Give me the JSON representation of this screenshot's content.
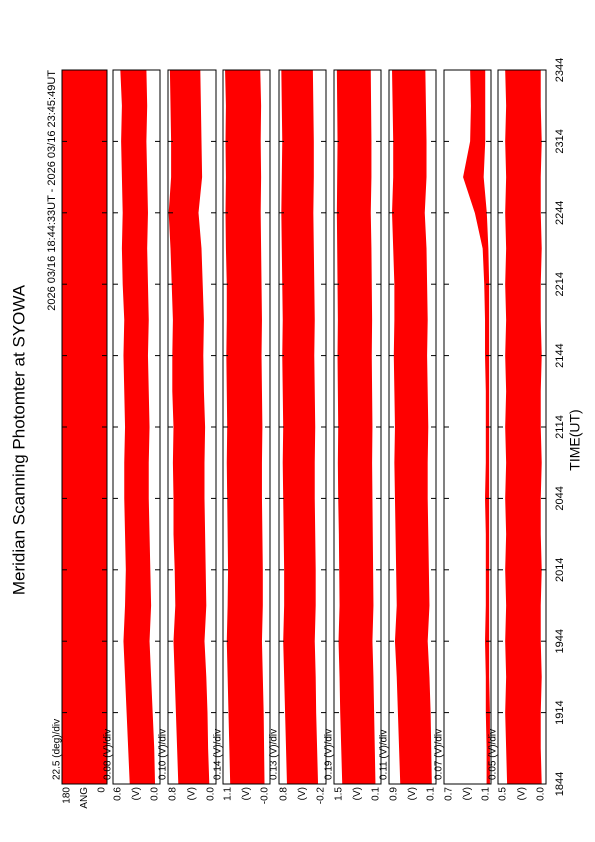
{
  "chart_data": {
    "type": "band",
    "title": "Meridian Scanning Photomter at SYOWA",
    "subtitle": "2026 03/16 18:44:33UT - 2026 03/16 23:45:49UT",
    "xlabel": "TIME(UT)",
    "color": "#ff0000",
    "xlim": [
      1124,
      1424
    ],
    "xticks": [
      {
        "value": 1124,
        "label": "1844"
      },
      {
        "value": 1154,
        "label": "1914"
      },
      {
        "value": 1184,
        "label": "1944"
      },
      {
        "value": 1214,
        "label": "2014"
      },
      {
        "value": 1244,
        "label": "2044"
      },
      {
        "value": 1274,
        "label": "2114"
      },
      {
        "value": 1304,
        "label": "2144"
      },
      {
        "value": 1334,
        "label": "2214"
      },
      {
        "value": 1364,
        "label": "2244"
      },
      {
        "value": 1394,
        "label": "2314"
      },
      {
        "value": 1424,
        "label": "2344"
      }
    ],
    "x": [
      1124,
      1139,
      1154,
      1169,
      1184,
      1199,
      1214,
      1229,
      1244,
      1259,
      1274,
      1289,
      1304,
      1319,
      1334,
      1349,
      1364,
      1379,
      1394,
      1409,
      1424
    ],
    "panels": [
      {
        "scale": "22.5 (deg)/div",
        "ylabel": "ANG",
        "ylim": [
          0,
          180
        ],
        "yticks": [
          180,
          0
        ],
        "high": [
          180,
          180,
          180,
          180,
          180,
          180,
          180,
          180,
          180,
          180,
          180,
          180,
          180,
          180,
          180,
          180,
          180,
          180,
          180,
          180,
          180
        ],
        "low": [
          0,
          0,
          0,
          0,
          0,
          0,
          0,
          0,
          0,
          0,
          0,
          0,
          0,
          0,
          0,
          0,
          0,
          0,
          0,
          0,
          0
        ]
      },
      {
        "scale": "0.08 (V)/div",
        "ylabel": "(V)",
        "ylim": [
          0,
          0.6
        ],
        "yticks": [
          0.6,
          {
            "value": 0,
            "label": "0.0"
          }
        ],
        "high": [
          0.38,
          0.4,
          0.42,
          0.44,
          0.46,
          0.44,
          0.43,
          0.44,
          0.45,
          0.45,
          0.44,
          0.45,
          0.46,
          0.45,
          0.47,
          0.48,
          0.47,
          0.48,
          0.49,
          0.48,
          0.5
        ],
        "low": [
          0.07,
          0.08,
          0.1,
          0.12,
          0.14,
          0.12,
          0.13,
          0.14,
          0.15,
          0.15,
          0.14,
          0.15,
          0.16,
          0.15,
          0.16,
          0.17,
          0.16,
          0.17,
          0.18,
          0.17,
          0.18
        ]
      },
      {
        "scale": "0.10 (V)/div",
        "ylabel": "(V)",
        "ylim": [
          0,
          0.8
        ],
        "yticks": [
          0.8,
          {
            "value": 0,
            "label": "0.0"
          }
        ],
        "high": [
          0.62,
          0.64,
          0.66,
          0.68,
          0.7,
          0.67,
          0.68,
          0.7,
          0.7,
          0.71,
          0.7,
          0.72,
          0.72,
          0.71,
          0.73,
          0.75,
          0.78,
          0.74,
          0.74,
          0.75,
          0.76
        ],
        "low": [
          0.12,
          0.14,
          0.15,
          0.17,
          0.2,
          0.17,
          0.18,
          0.19,
          0.2,
          0.2,
          0.19,
          0.21,
          0.22,
          0.21,
          0.23,
          0.25,
          0.3,
          0.24,
          0.25,
          0.26,
          0.27
        ]
      },
      {
        "scale": "0.14 (V)/div",
        "ylabel": "(V)",
        "ylim": [
          0,
          1.1
        ],
        "yticks": [
          1.1,
          {
            "value": 0,
            "label": "-0.0"
          }
        ],
        "high": [
          0.92,
          0.94,
          0.96,
          0.98,
          1.0,
          0.98,
          0.97,
          0.98,
          0.99,
          1.0,
          0.99,
          1.0,
          1.01,
          1.0,
          1.0,
          1.02,
          1.03,
          1.02,
          1.03,
          1.02,
          1.04
        ],
        "low": [
          0.14,
          0.15,
          0.16,
          0.18,
          0.2,
          0.18,
          0.18,
          0.19,
          0.2,
          0.2,
          0.19,
          0.2,
          0.21,
          0.2,
          0.21,
          0.22,
          0.23,
          0.22,
          0.23,
          0.22,
          0.24
        ]
      },
      {
        "scale": "0.13 (V)/div",
        "ylabel": "(V)",
        "ylim": [
          -0.2,
          0.8
        ],
        "yticks": [
          0.8,
          -0.2
        ],
        "high": [
          0.62,
          0.64,
          0.66,
          0.68,
          0.7,
          0.68,
          0.68,
          0.69,
          0.7,
          0.71,
          0.7,
          0.71,
          0.72,
          0.71,
          0.72,
          0.73,
          0.74,
          0.73,
          0.72,
          0.73,
          0.74
        ],
        "low": [
          -0.02,
          0.0,
          0.02,
          0.03,
          0.05,
          0.03,
          0.03,
          0.04,
          0.05,
          0.05,
          0.04,
          0.05,
          0.06,
          0.05,
          0.06,
          0.07,
          0.08,
          0.07,
          0.07,
          0.08,
          0.09
        ]
      },
      {
        "scale": "0.19 (V)/div",
        "ylabel": "(V)",
        "ylim": [
          0.1,
          1.5
        ],
        "yticks": [
          1.5,
          0.1
        ],
        "high": [
          1.24,
          1.27,
          1.3,
          1.32,
          1.35,
          1.32,
          1.33,
          1.34,
          1.36,
          1.37,
          1.36,
          1.37,
          1.38,
          1.37,
          1.38,
          1.39,
          1.4,
          1.39,
          1.38,
          1.39,
          1.4
        ],
        "low": [
          0.28,
          0.3,
          0.32,
          0.34,
          0.37,
          0.34,
          0.35,
          0.36,
          0.37,
          0.38,
          0.37,
          0.38,
          0.39,
          0.38,
          0.39,
          0.4,
          0.42,
          0.4,
          0.4,
          0.41,
          0.42
        ]
      },
      {
        "scale": "0.11 (V)/div",
        "ylabel": "(V)",
        "ylim": [
          0.1,
          0.9
        ],
        "yticks": [
          0.9,
          0.1
        ],
        "high": [
          0.7,
          0.72,
          0.74,
          0.76,
          0.79,
          0.76,
          0.77,
          0.78,
          0.79,
          0.8,
          0.79,
          0.8,
          0.81,
          0.8,
          0.8,
          0.82,
          0.84,
          0.82,
          0.82,
          0.83,
          0.84
        ],
        "low": [
          0.18,
          0.19,
          0.2,
          0.22,
          0.25,
          0.22,
          0.23,
          0.24,
          0.25,
          0.25,
          0.24,
          0.25,
          0.26,
          0.25,
          0.26,
          0.27,
          0.3,
          0.27,
          0.27,
          0.28,
          0.29
        ]
      },
      {
        "scale": "0.07 (V)/div",
        "ylabel": "(V)",
        "ylim": [
          0.1,
          0.7
        ],
        "yticks": [
          0.7,
          0.1
        ],
        "high": [
          0.15,
          0.15,
          0.16,
          0.16,
          0.17,
          0.16,
          0.16,
          0.16,
          0.17,
          0.16,
          0.16,
          0.16,
          0.17,
          0.17,
          0.18,
          0.2,
          0.3,
          0.45,
          0.36,
          0.35,
          0.36
        ],
        "low": [
          0.12,
          0.12,
          0.12,
          0.13,
          0.13,
          0.13,
          0.13,
          0.13,
          0.13,
          0.13,
          0.13,
          0.13,
          0.13,
          0.13,
          0.13,
          0.14,
          0.16,
          0.2,
          0.18,
          0.18,
          0.18
        ]
      },
      {
        "scale": "0.05 (V)/div",
        "ylabel": "(V)",
        "ylim": [
          0,
          0.5
        ],
        "yticks": [
          0.5,
          {
            "value": 0,
            "label": "0.0"
          }
        ],
        "high": [
          0.4,
          0.41,
          0.42,
          0.41,
          0.42,
          0.41,
          0.42,
          0.41,
          0.42,
          0.41,
          0.42,
          0.41,
          0.42,
          0.41,
          0.42,
          0.41,
          0.42,
          0.41,
          0.42,
          0.41,
          0.42
        ],
        "low": [
          0.05,
          0.06,
          0.06,
          0.05,
          0.06,
          0.06,
          0.05,
          0.06,
          0.06,
          0.05,
          0.06,
          0.06,
          0.05,
          0.06,
          0.06,
          0.05,
          0.06,
          0.06,
          0.05,
          0.06,
          0.06
        ]
      }
    ]
  }
}
